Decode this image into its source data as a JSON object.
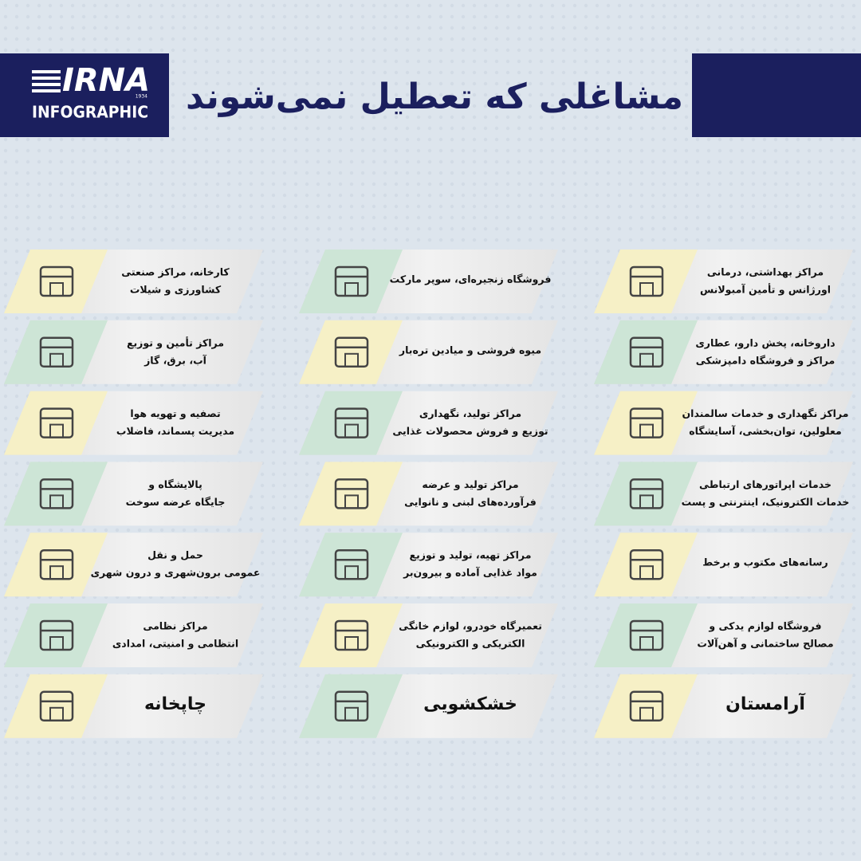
{
  "header": {
    "logo": "IRNA",
    "logo_year": "1934",
    "logo_sub": "INFOGRAPHIC",
    "title": "مشاغلی که تعطیل نمی‌شوند"
  },
  "columns": [
    {
      "items": [
        {
          "lines": [
            "مراکز بهداشتی، درمانی",
            "اورژانس و تأمین آمبولانس"
          ]
        },
        {
          "lines": [
            "داروخانه، پخش دارو، عطاری",
            "مراکز و فروشگاه دامپزشکی"
          ]
        },
        {
          "lines": [
            "مراکز نگهداری و خدمات سالمندان",
            "معلولین، توان‌بخشی، آسایشگاه"
          ]
        },
        {
          "lines": [
            "خدمات اپراتورهای ارتباطی",
            "خدمات الکترونیک، اینترنتی و پست"
          ]
        },
        {
          "lines": [
            "رسانه‌های مکتوب و برخط"
          ]
        },
        {
          "lines": [
            "فروشگاه لوازم یدکی و",
            "مصالح ساختمانی و آهن‌آلات"
          ]
        },
        {
          "lines": [
            "آرامستان"
          ]
        }
      ]
    },
    {
      "items": [
        {
          "lines": [
            "فروشگاه زنجیره‌ای، سوپر مارکت"
          ]
        },
        {
          "lines": [
            "میوه فروشی و میادین تره‌بار"
          ]
        },
        {
          "lines": [
            "مراکز تولید، نگهداری",
            "توزیع و فروش محصولات غذایی"
          ]
        },
        {
          "lines": [
            "مراکز تولید و عرضه",
            "فرآورده‌های لبنی و نانوایی"
          ]
        },
        {
          "lines": [
            "مراکز تهیه، تولید و توزیع",
            "مواد غذایی آماده و بیرون‌بر"
          ]
        },
        {
          "lines": [
            "تعمیرگاه خودرو، لوازم خانگی",
            "الکتریکی و الکترونیکی"
          ]
        },
        {
          "lines": [
            "خشکشویی"
          ]
        }
      ]
    },
    {
      "items": [
        {
          "lines": [
            "کارخانه، مراکز صنعتی",
            "کشاورزی و شیلات"
          ]
        },
        {
          "lines": [
            "مراکز تأمین و توزیع",
            "آب، برق، گاز"
          ]
        },
        {
          "lines": [
            "تصفیه و تهویه هوا",
            "مدیریت پسماند، فاضلاب"
          ]
        },
        {
          "lines": [
            "پالایشگاه و",
            "جایگاه عرضه سوخت"
          ]
        },
        {
          "lines": [
            "حمل و نقل",
            "عمومی برون‌شهری و درون شهری"
          ]
        },
        {
          "lines": [
            "مراکز نظامی",
            "انتظامی و امنیتی، امدادی"
          ]
        },
        {
          "lines": [
            "چاپخانه"
          ]
        }
      ]
    }
  ]
}
